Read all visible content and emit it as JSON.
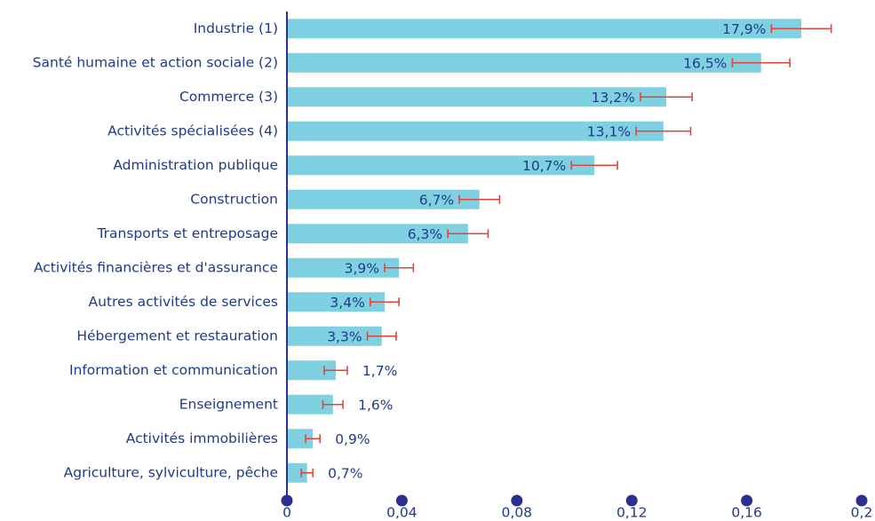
{
  "chart_data": {
    "type": "bar",
    "orientation": "horizontal",
    "categories": [
      "Industrie (1)",
      "Santé humaine et action sociale (2)",
      "Commerce (3)",
      "Activités spécialisées (4)",
      "Administration publique",
      "Construction",
      "Transports  et entreposage",
      "Activités financières et d'assurance",
      "Autres activités de services",
      "Hébergement et restauration",
      "Information et communication",
      "Enseignement",
      "Activités immobilières",
      "Agriculture, sylviculture, pêche"
    ],
    "values": [
      0.179,
      0.165,
      0.132,
      0.131,
      0.107,
      0.067,
      0.063,
      0.039,
      0.034,
      0.033,
      0.017,
      0.016,
      0.009,
      0.007
    ],
    "value_labels": [
      "17,9%",
      "16,5%",
      "13,2%",
      "13,1%",
      "10,7%",
      "6,7%",
      "6,3%",
      "3,9%",
      "3,4%",
      "3,3%",
      "1,7%",
      "1,6%",
      "0,9%",
      "0,7%"
    ],
    "errors": [
      0.0104,
      0.01,
      0.009,
      0.0095,
      0.008,
      0.007,
      0.007,
      0.005,
      0.005,
      0.005,
      0.004,
      0.0035,
      0.0025,
      0.002
    ],
    "color": "#7fd0e0",
    "error_color": "#e0453a",
    "xlim": [
      0,
      0.2
    ],
    "xticks": [
      0,
      {
        "value": 0.04,
        "label": "0,04"
      },
      {
        "value": 0.08,
        "label": "0,08"
      },
      {
        "value": 0.12,
        "label": "0,12"
      },
      {
        "value": 0.16,
        "label": "0,16"
      },
      {
        "value": 0.2,
        "label": "0,2"
      }
    ]
  }
}
